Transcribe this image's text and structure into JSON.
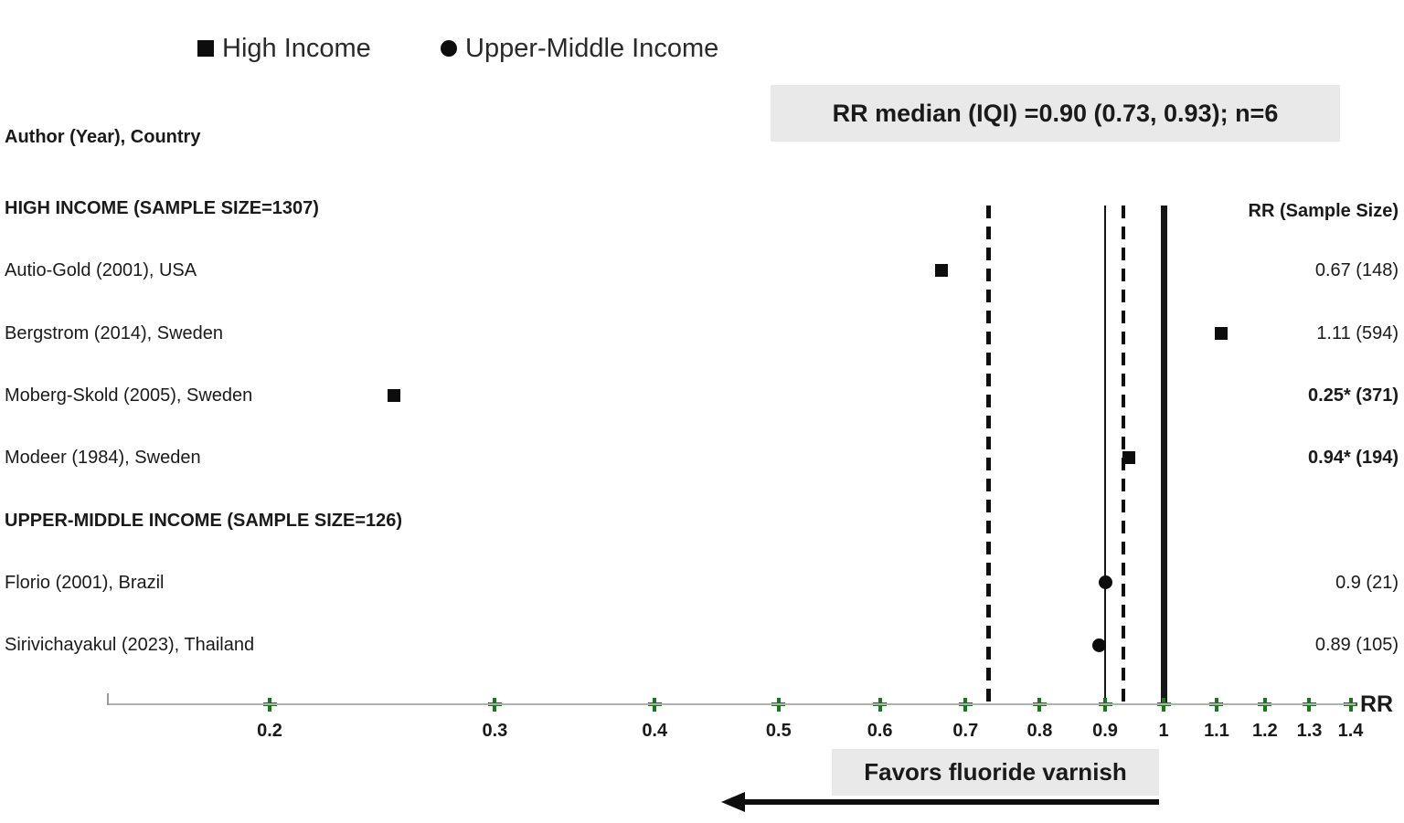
{
  "legend": {
    "items": [
      {
        "label": "High Income",
        "marker": "square"
      },
      {
        "label": "Upper-Middle Income",
        "marker": "circle"
      }
    ]
  },
  "summary": {
    "text": "RR median (IQI) =0.90 (0.73, 0.93); n=6"
  },
  "columns": {
    "left_header": "Author (Year), Country",
    "right_header": "RR (Sample Size)"
  },
  "footer": {
    "favors_label": "Favors fluoride varnish",
    "axis_label": "RR"
  },
  "colors": {
    "tick_green": "#1c741c",
    "box_gray": "#e9e9e9",
    "marker_black": "#0d0d0d",
    "axis_gray": "#b1b1b1",
    "text": "#1a1a1a"
  },
  "chart_data": {
    "type": "scatter",
    "subtype": "forest-plot",
    "title": "RR median (IQI) =0.90 (0.73, 0.93); n=6",
    "xlabel": "RR",
    "x_scale": "log",
    "x_ticks": [
      0.2,
      0.3,
      0.4,
      0.5,
      0.6,
      0.7,
      0.8,
      0.9,
      1,
      1.1,
      1.2,
      1.3,
      1.4
    ],
    "x_tick_labels": [
      "0.2",
      "0.3",
      "0.4",
      "0.5",
      "0.6",
      "0.7",
      "0.8",
      "0.9",
      "1",
      "1.1",
      "1.2",
      "1.3",
      "1.4"
    ],
    "xlim": [
      0.15,
      1.42
    ],
    "grid": false,
    "legend_position": "top",
    "summary_stats": {
      "median": 0.9,
      "iqi_lower": 0.73,
      "iqi_upper": 0.93,
      "n": 6
    },
    "reference_lines": [
      {
        "value": 0.73,
        "style": "dashed",
        "role": "iqi-lower"
      },
      {
        "value": 0.9,
        "style": "solid-thin",
        "role": "median"
      },
      {
        "value": 0.93,
        "style": "dashed",
        "role": "iqi-upper"
      },
      {
        "value": 1.0,
        "style": "solid-thick",
        "role": "null-line"
      }
    ],
    "groups": [
      {
        "header": "HIGH INCOME (SAMPLE SIZE=1307)",
        "marker": "square",
        "studies": [
          {
            "label": "Autio-Gold (2001), USA",
            "rr": 0.67,
            "value_text": "0.67 (148)",
            "bold": false
          },
          {
            "label": "Bergstrom (2014), Sweden",
            "rr": 1.11,
            "value_text": "1.11 (594)",
            "bold": false
          },
          {
            "label": "Moberg-Skold (2005), Sweden",
            "rr": 0.25,
            "value_text": "0.25* (371)",
            "bold": true
          },
          {
            "label": "Modeer (1984), Sweden",
            "rr": 0.94,
            "value_text": "0.94* (194)",
            "bold": true
          }
        ]
      },
      {
        "header": "UPPER-MIDDLE INCOME (SAMPLE SIZE=126)",
        "marker": "circle",
        "studies": [
          {
            "label": "Florio (2001), Brazil",
            "rr": 0.9,
            "value_text": "0.9 (21)",
            "bold": false
          },
          {
            "label": "Sirivichayakul (2023), Thailand",
            "rr": 0.89,
            "value_text": "0.89 (105)",
            "bold": false
          }
        ]
      }
    ]
  }
}
